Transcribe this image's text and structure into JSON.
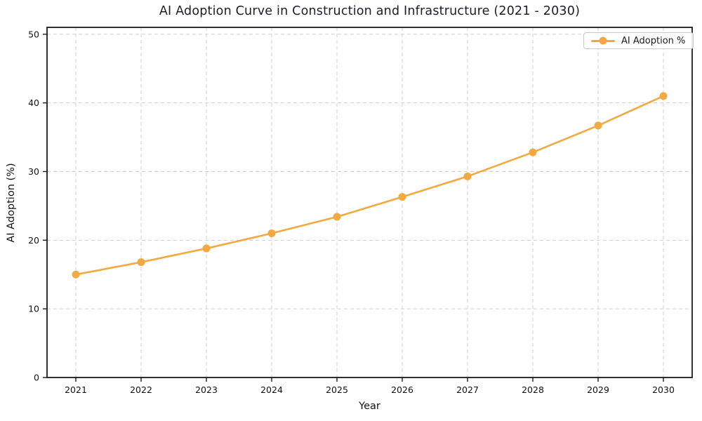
{
  "chart_data": {
    "type": "line",
    "title": "AI Adoption Curve in Construction and Infrastructure (2021 - 2030)",
    "xlabel": "Year",
    "ylabel": "AI Adoption (%)",
    "categories": [
      "2021",
      "2022",
      "2023",
      "2024",
      "2025",
      "2026",
      "2027",
      "2028",
      "2029",
      "2030"
    ],
    "series": [
      {
        "name": "AI Adoption %",
        "values": [
          15.0,
          16.8,
          18.8,
          21.0,
          23.4,
          26.3,
          29.3,
          32.8,
          36.7,
          41.0
        ],
        "color": "#F2A93F",
        "marker": "circle",
        "line_width": 2.6,
        "marker_radius": 5.5
      }
    ],
    "ylim": [
      0,
      51
    ],
    "yticks": [
      0,
      10,
      20,
      30,
      40,
      50
    ],
    "grid": true,
    "grid_style": "dashed",
    "legend": {
      "position": "upper-right",
      "entries": [
        "AI Adoption %"
      ]
    },
    "colors": {
      "line": "#F2A93F",
      "grid": "#CFCFCF",
      "axis": "#1A1A1A",
      "tick_label": "#111111",
      "title_text": "#1C1C2E",
      "legend_border": "#C8C8C8",
      "background": "#FFFFFF"
    }
  }
}
